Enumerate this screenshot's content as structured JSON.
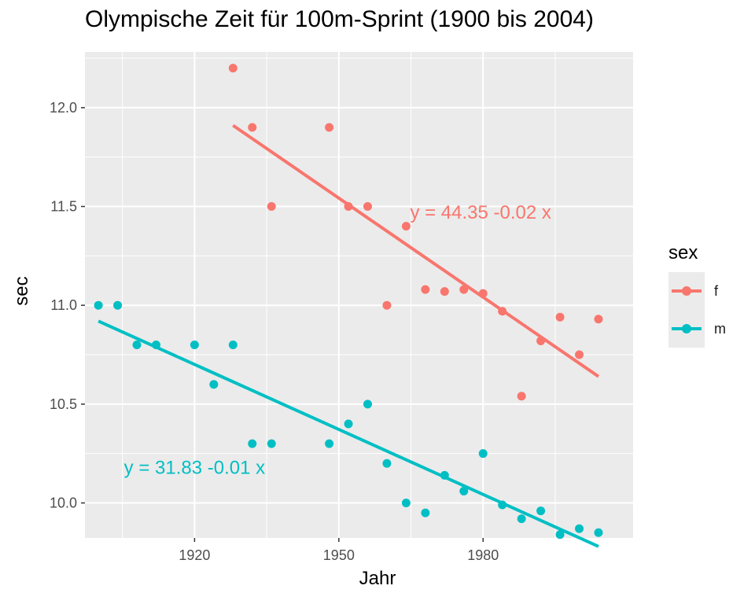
{
  "chart_data": {
    "type": "scatter",
    "title": "Olympische Zeit für 100m-Sprint (1900 bis 2004)",
    "xlabel": "Jahr",
    "ylabel": "sec",
    "xlim": [
      1897.2,
      2011.2
    ],
    "ylim": [
      9.823,
      12.282
    ],
    "x_ticks": [
      1920,
      1950,
      1980
    ],
    "y_ticks": [
      10.0,
      10.5,
      11.0,
      11.5,
      12.0
    ],
    "y_tick_labels": [
      "10.0",
      "10.5",
      "11.0",
      "11.5",
      "12.0"
    ],
    "grid": true,
    "legend": {
      "title": "sex",
      "position": "right"
    },
    "series": [
      {
        "name": "f",
        "color": "#F8766D",
        "points": [
          [
            1928,
            12.2
          ],
          [
            1932,
            11.9
          ],
          [
            1936,
            11.5
          ],
          [
            1948,
            11.9
          ],
          [
            1952,
            11.5
          ],
          [
            1956,
            11.5
          ],
          [
            1960,
            11.0
          ],
          [
            1964,
            11.4
          ],
          [
            1968,
            11.08
          ],
          [
            1972,
            11.07
          ],
          [
            1976,
            11.08
          ],
          [
            1980,
            11.06
          ],
          [
            1984,
            10.97
          ],
          [
            1988,
            10.54
          ],
          [
            1992,
            10.82
          ],
          [
            1996,
            10.94
          ],
          [
            2000,
            10.75
          ],
          [
            2004,
            10.93
          ]
        ],
        "fit": {
          "x": [
            1928,
            2004
          ],
          "y": [
            11.91,
            10.64
          ]
        },
        "equation": "y = 44.35 -0.02 x",
        "equation_pos": [
          1979.5,
          11.47
        ]
      },
      {
        "name": "m",
        "color": "#00BFC4",
        "points": [
          [
            1900,
            11.0
          ],
          [
            1904,
            11.0
          ],
          [
            1908,
            10.8
          ],
          [
            1912,
            10.8
          ],
          [
            1920,
            10.8
          ],
          [
            1924,
            10.6
          ],
          [
            1928,
            10.8
          ],
          [
            1932,
            10.3
          ],
          [
            1936,
            10.3
          ],
          [
            1948,
            10.3
          ],
          [
            1952,
            10.4
          ],
          [
            1956,
            10.5
          ],
          [
            1960,
            10.2
          ],
          [
            1964,
            10.0
          ],
          [
            1968,
            9.95
          ],
          [
            1972,
            10.14
          ],
          [
            1976,
            10.06
          ],
          [
            1980,
            10.25
          ],
          [
            1984,
            9.99
          ],
          [
            1988,
            9.92
          ],
          [
            1992,
            9.96
          ],
          [
            1996,
            9.84
          ],
          [
            2000,
            9.87
          ],
          [
            2004,
            9.85
          ]
        ],
        "fit": {
          "x": [
            1900,
            2004
          ],
          "y": [
            10.92,
            9.78
          ]
        },
        "equation": "y = 31.83 -0.01 x",
        "equation_pos": [
          1920,
          10.18
        ]
      }
    ]
  }
}
